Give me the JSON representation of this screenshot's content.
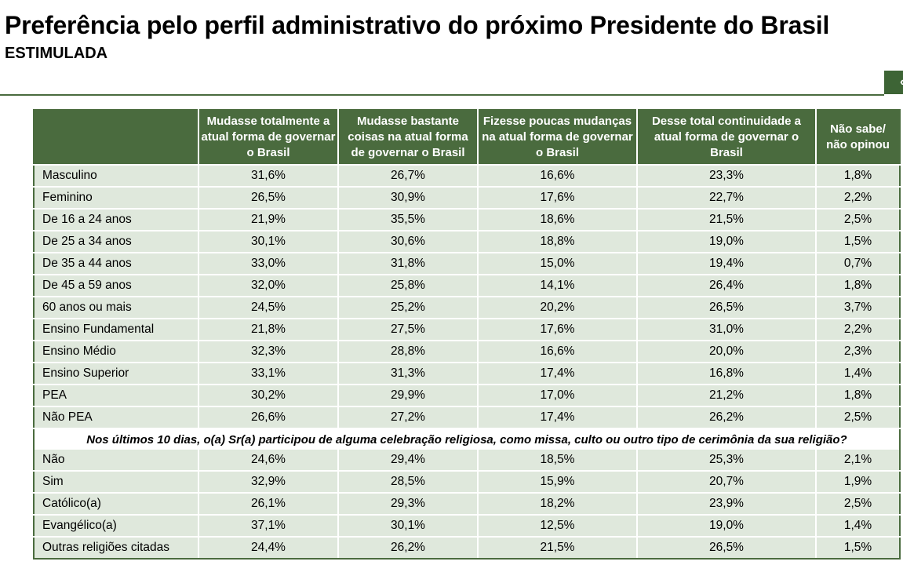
{
  "header": {
    "title": "Preferência pelo perfil administrativo do próximo Presidente do Brasil",
    "subtitle": "ESTIMULADA"
  },
  "chart_data": {
    "type": "table",
    "title": "Preferência pelo perfil administrativo do próximo Presidente do Brasil",
    "subtitle": "ESTIMULADA",
    "columns": [
      "",
      "Mudasse totalmente a atual forma de governar o Brasil",
      "Mudasse bastante coisas na atual forma de governar o Brasil",
      "Fizesse poucas mudanças na atual forma de governar o Brasil",
      "Desse total continuidade a atual forma de governar o Brasil",
      "Não sabe/ não opinou"
    ],
    "groups": [
      {
        "rows": [
          {
            "label": "Masculino",
            "values": [
              "31,6%",
              "26,7%",
              "16,6%",
              "23,3%",
              "1,8%"
            ]
          },
          {
            "label": "Feminino",
            "values": [
              "26,5%",
              "30,9%",
              "17,6%",
              "22,7%",
              "2,2%"
            ]
          }
        ]
      },
      {
        "rows": [
          {
            "label": "De 16 a 24 anos",
            "values": [
              "21,9%",
              "35,5%",
              "18,6%",
              "21,5%",
              "2,5%"
            ]
          },
          {
            "label": "De 25 a 34 anos",
            "values": [
              "30,1%",
              "30,6%",
              "18,8%",
              "19,0%",
              "1,5%"
            ]
          },
          {
            "label": "De 35 a 44 anos",
            "values": [
              "33,0%",
              "31,8%",
              "15,0%",
              "19,4%",
              "0,7%"
            ]
          },
          {
            "label": "De 45 a 59 anos",
            "values": [
              "32,0%",
              "25,8%",
              "14,1%",
              "26,4%",
              "1,8%"
            ]
          },
          {
            "label": "60 anos ou mais",
            "values": [
              "24,5%",
              "25,2%",
              "20,2%",
              "26,5%",
              "3,7%"
            ]
          }
        ]
      },
      {
        "rows": [
          {
            "label": "Ensino Fundamental",
            "values": [
              "21,8%",
              "27,5%",
              "17,6%",
              "31,0%",
              "2,2%"
            ]
          },
          {
            "label": "Ensino Médio",
            "values": [
              "32,3%",
              "28,8%",
              "16,6%",
              "20,0%",
              "2,3%"
            ]
          },
          {
            "label": "Ensino Superior",
            "values": [
              "33,1%",
              "31,3%",
              "17,4%",
              "16,8%",
              "1,4%"
            ]
          }
        ]
      },
      {
        "rows": [
          {
            "label": "PEA",
            "values": [
              "30,2%",
              "29,9%",
              "17,0%",
              "21,2%",
              "1,8%"
            ]
          },
          {
            "label": "Não PEA",
            "values": [
              "26,6%",
              "27,2%",
              "17,4%",
              "26,2%",
              "2,5%"
            ]
          }
        ]
      },
      {
        "question": "Nos últimos 10 dias, o(a) Sr(a) participou de alguma celebração religiosa, como missa, culto ou outro tipo de cerimônia da sua religião?",
        "rows": [
          {
            "label": "Não",
            "values": [
              "24,6%",
              "29,4%",
              "18,5%",
              "25,3%",
              "2,1%"
            ]
          },
          {
            "label": "Sim",
            "values": [
              "32,9%",
              "28,5%",
              "15,9%",
              "20,7%",
              "1,9%"
            ]
          }
        ]
      },
      {
        "rows": [
          {
            "label": "Católico(a)",
            "values": [
              "26,1%",
              "29,3%",
              "18,2%",
              "23,9%",
              "2,5%"
            ]
          },
          {
            "label": "Evangélico(a)",
            "values": [
              "37,1%",
              "30,1%",
              "12,5%",
              "19,0%",
              "1,4%"
            ]
          },
          {
            "label": "Outras religiões citadas",
            "values": [
              "24,4%",
              "26,2%",
              "21,5%",
              "26,5%",
              "1,5%"
            ]
          }
        ]
      }
    ]
  },
  "colors": {
    "header_bg": "#4a6b3e",
    "row_bg": "#dfe8dc",
    "rule": "#4a6b3e",
    "corner_tab": "#3d6435"
  }
}
